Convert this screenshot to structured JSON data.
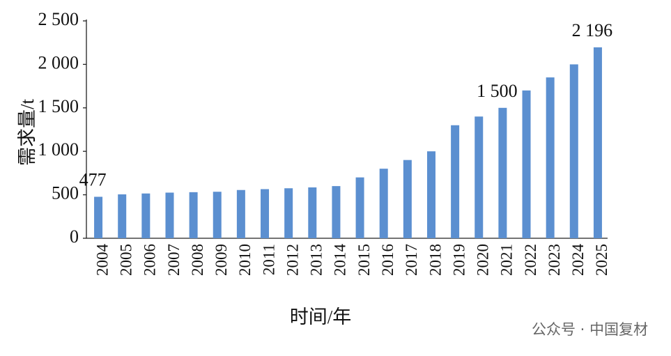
{
  "chart_data": {
    "type": "bar",
    "y_label": "需求量/t",
    "x_label": "时间/年",
    "categories": [
      "2004",
      "2005",
      "2006",
      "2007",
      "2008",
      "2009",
      "2010",
      "2011",
      "2012",
      "2013",
      "2014",
      "2015",
      "2016",
      "2017",
      "2018",
      "2019",
      "2020",
      "2021",
      "2022",
      "2023",
      "2024",
      "2025"
    ],
    "values": [
      477,
      505,
      515,
      525,
      530,
      535,
      555,
      565,
      575,
      585,
      600,
      700,
      800,
      900,
      1000,
      1300,
      1400,
      1500,
      1700,
      1850,
      2000,
      2196
    ],
    "value_labels": [
      "477",
      null,
      null,
      null,
      null,
      null,
      null,
      null,
      null,
      null,
      null,
      null,
      null,
      null,
      null,
      null,
      null,
      "1 500",
      null,
      null,
      null,
      "2 196"
    ],
    "color": "#5b8fd0",
    "ylim": [
      0,
      2500
    ],
    "yticks": [
      0,
      500,
      {
        "value": 1000,
        "label": "1 000"
      },
      {
        "value": 1500,
        "label": "1 500"
      },
      {
        "value": 2000,
        "label": "2 000"
      },
      {
        "value": 2500,
        "label": "2 500"
      }
    ],
    "grid": false,
    "watermark": "公众号 · 中国复材"
  }
}
